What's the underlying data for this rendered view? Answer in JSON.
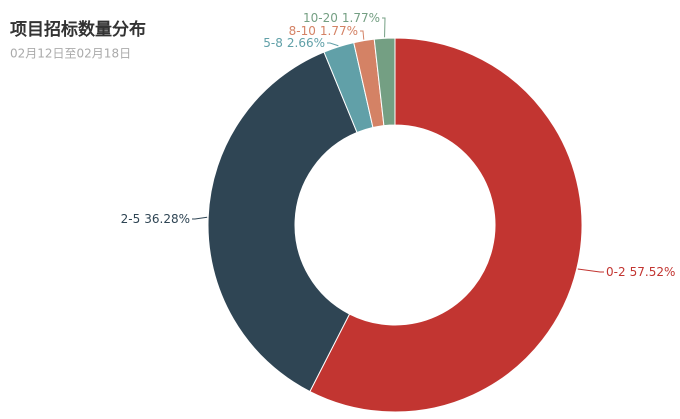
{
  "chart_data": {
    "type": "pie",
    "title": "项目招标数量分布",
    "subtitle": "02月12日至02月18日",
    "categories": [
      "0-2",
      "2-5",
      "5-8",
      "8-10",
      "10-20"
    ],
    "values": [
      57.52,
      36.28,
      2.66,
      1.77,
      1.77
    ],
    "value_labels": [
      "57.52%",
      "36.28%",
      "2.66%",
      "1.77%",
      "1.77%"
    ],
    "colors": [
      "#c23531",
      "#2f4554",
      "#61a0a8",
      "#d48265",
      "#749f83"
    ]
  }
}
